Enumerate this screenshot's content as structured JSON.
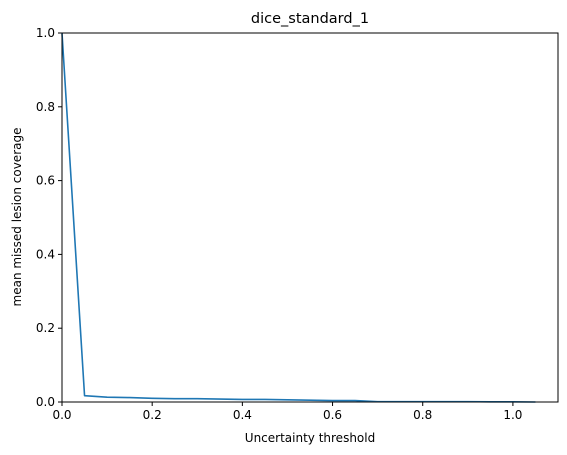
{
  "chart_data": {
    "type": "line",
    "title": "dice_standard_1",
    "xlabel": "Uncertainty threshold",
    "ylabel": "mean missed lesion coverage",
    "xlim": [
      0,
      1.1
    ],
    "ylim": [
      0,
      1.0
    ],
    "xticks": [
      0.0,
      0.2,
      0.4,
      0.6,
      0.8,
      1.0
    ],
    "xtick_labels": [
      "0.0",
      "0.2",
      "0.4",
      "0.6",
      "0.8",
      "1.0"
    ],
    "yticks": [
      0.0,
      0.2,
      0.4,
      0.6,
      0.8,
      1.0
    ],
    "ytick_labels": [
      "0.0",
      "0.2",
      "0.4",
      "0.6",
      "0.8",
      "1.0"
    ],
    "grid": false,
    "series": [
      {
        "color": "#1f77b4",
        "x": [
          0.0,
          0.05,
          0.1,
          0.15,
          0.2,
          0.25,
          0.3,
          0.35,
          0.4,
          0.45,
          0.5,
          0.55,
          0.6,
          0.65,
          0.7,
          0.75,
          0.8,
          0.85,
          0.9,
          0.95,
          1.0,
          1.05
        ],
        "y": [
          1.0,
          0.017,
          0.013,
          0.012,
          0.01,
          0.009,
          0.009,
          0.008,
          0.007,
          0.007,
          0.006,
          0.005,
          0.004,
          0.004,
          0.001,
          0.001,
          0.001,
          0.001,
          0.001,
          0.0005,
          0.0005,
          0.0
        ]
      }
    ]
  }
}
